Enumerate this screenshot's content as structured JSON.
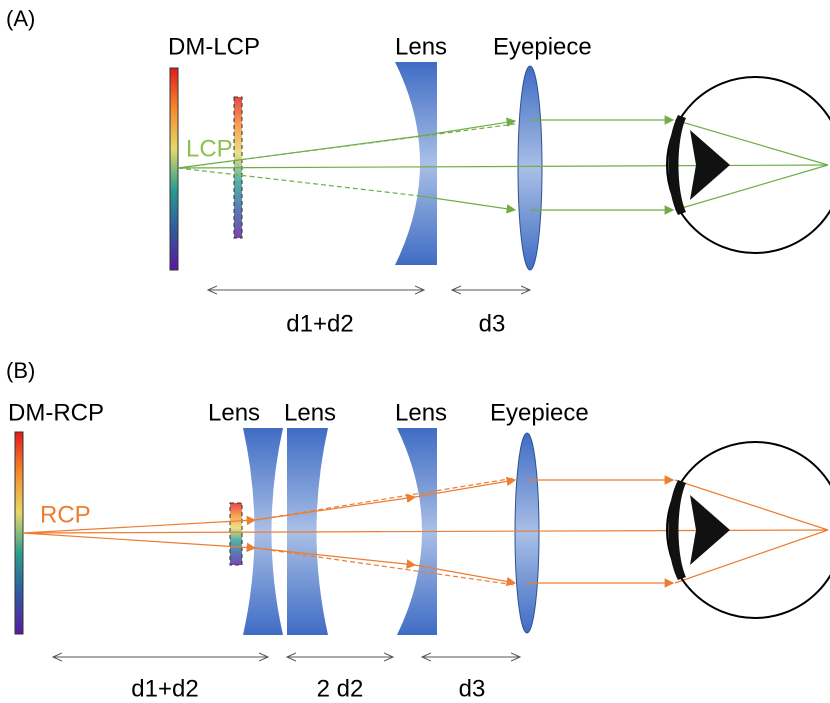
{
  "panels": [
    {
      "label": "(A)",
      "source": "DM-LCP",
      "polarization": "LCP",
      "lenses": [
        "Lens",
        "Eyepiece"
      ],
      "distances": [
        "d1+d2",
        "d3"
      ]
    },
    {
      "label": "(B)",
      "source": "DM-RCP",
      "polarization": "RCP",
      "lenses": [
        "Lens",
        "Lens",
        "Lens",
        "Eyepiece"
      ],
      "distances": [
        "d1+d2",
        "2 d2",
        "d3"
      ]
    }
  ]
}
